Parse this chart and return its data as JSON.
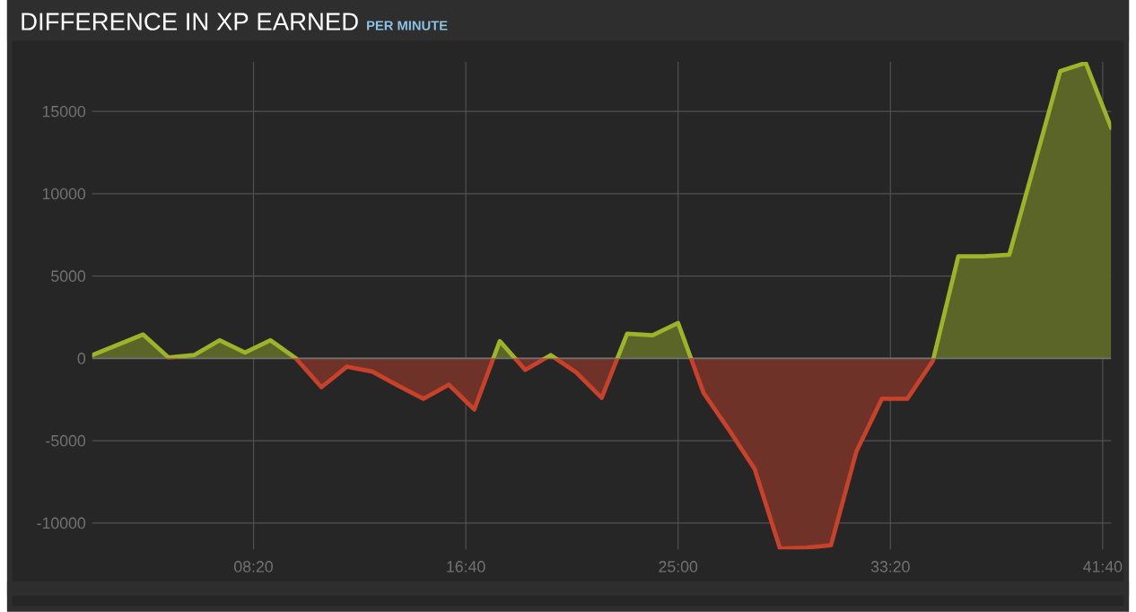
{
  "chart_data": {
    "type": "area",
    "title": "DIFFERENCE IN XP EARNED",
    "subtitle": "PER MINUTE",
    "x": [
      120,
      240,
      300,
      360,
      420,
      480,
      540,
      600,
      660,
      720,
      780,
      840,
      900,
      960,
      1020,
      1080,
      1140,
      1200,
      1260,
      1320,
      1380,
      1440,
      1500,
      1560,
      1620,
      1680,
      1740,
      1800,
      1860,
      1920,
      1980,
      2040,
      2100,
      2160,
      2220,
      2280,
      2340,
      2400,
      2460,
      2520
    ],
    "values": [
      200,
      1450,
      50,
      200,
      1100,
      350,
      1100,
      0,
      -1750,
      -500,
      -800,
      -1650,
      -2450,
      -1600,
      -3100,
      1050,
      -700,
      200,
      -850,
      -2400,
      1500,
      1400,
      2150,
      -2100,
      -4350,
      -6700,
      -11550,
      -11500,
      -11350,
      -5650,
      -2450,
      -2450,
      -150,
      6200,
      6200,
      6300,
      11850,
      17450,
      17950,
      14000
    ],
    "colors": [
      "#9cb32a",
      "#9cb32a",
      "#9cb32a",
      "#9cb32a",
      "#9cb32a",
      "#9cb32a",
      "#9cb32a",
      "#9cb32a",
      "#c8412b",
      "#c8412b",
      "#c8412b",
      "#c8412b",
      "#c8412b",
      "#c8412b",
      "#c8412b",
      "#9cb32a",
      "#c8412b",
      "#9cb32a",
      "#c8412b",
      "#c8412b",
      "#9cb32a",
      "#9cb32a",
      "#9cb32a",
      "#c8412b",
      "#c8412b",
      "#c8412b",
      "#c8412b",
      "#c8412b",
      "#c8412b",
      "#c8412b",
      "#c8412b",
      "#c8412b",
      "#c8412b",
      "#9cb32a",
      "#9cb32a",
      "#9cb32a",
      "#9cb32a",
      "#9cb32a",
      "#9cb32a",
      "#9cb32a"
    ],
    "xlim": [
      120,
      2520
    ],
    "ylim": [
      -11600,
      18000
    ],
    "xticks": [
      {
        "value": 500,
        "label": "08:20"
      },
      {
        "value": 1000,
        "label": "16:40"
      },
      {
        "value": 1500,
        "label": "25:00"
      },
      {
        "value": 2000,
        "label": "33:20"
      },
      {
        "value": 2500,
        "label": "41:40"
      }
    ],
    "yticks": [
      -10000,
      -5000,
      0,
      5000,
      10000,
      15000
    ],
    "grid": true
  }
}
